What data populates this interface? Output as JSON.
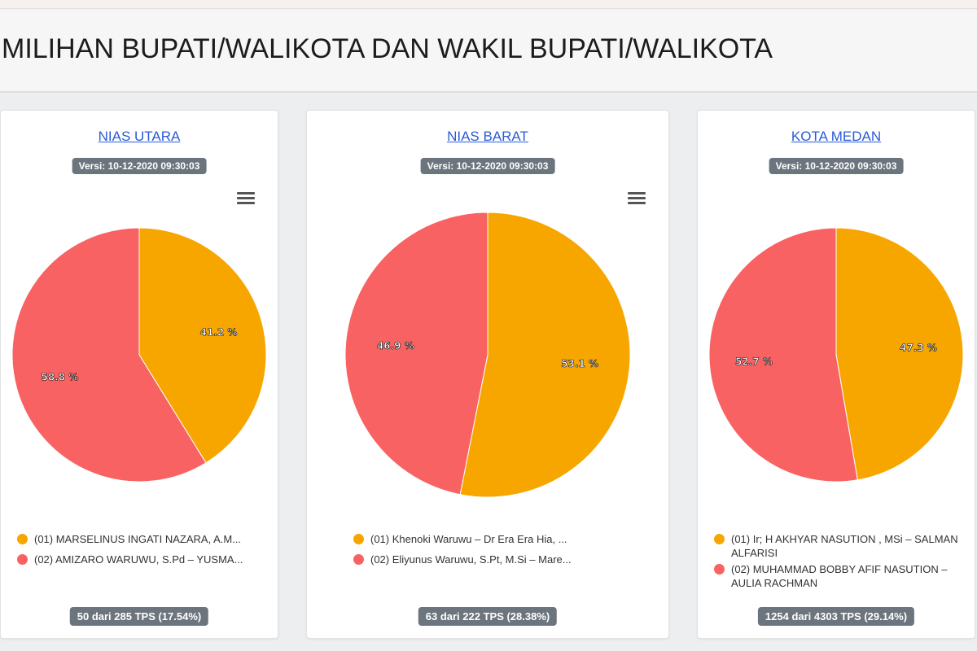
{
  "page": {
    "title": "MILIHAN BUPATI/WALIKOTA DAN WAKIL BUPATI/WALIKOTA"
  },
  "colors": {
    "candidate_01": "#f7a600",
    "candidate_02": "#f96262",
    "badge": "#6c757d",
    "link": "#2a5bd7"
  },
  "menu_icon": "hamburger-menu-icon",
  "chart_data": [
    {
      "type": "pie",
      "title": "NIAS UTARA",
      "version": "Versi: 10-12-2020 09:30:03",
      "legend": [
        "(01) MARSELINUS INGATI NAZARA, A.M...",
        "(02) AMIZARO WARUWU, S.Pd – YUSMA..."
      ],
      "values": [
        41.2,
        58.8
      ],
      "labels": [
        "41.2 %",
        "58.8 %"
      ],
      "tps": "50 dari 285 TPS (17.54%)",
      "show_menu": true
    },
    {
      "type": "pie",
      "title": "NIAS BARAT",
      "version": "Versi: 10-12-2020 09:30:03",
      "legend": [
        "(01) Khenoki Waruwu – Dr Era Era Hia, ...",
        "(02) Eliyunus Waruwu, S.Pt, M.Si – Mare..."
      ],
      "values": [
        53.1,
        46.9
      ],
      "labels": [
        "53.1 %",
        "46.9 %"
      ],
      "tps": "63 dari 222 TPS (28.38%)",
      "show_menu": true
    },
    {
      "type": "pie",
      "title": "KOTA MEDAN",
      "version": "Versi: 10-12-2020 09:30:03",
      "legend": [
        "(01) Ir; H AKHYAR NASUTION , MSi – SALMAN ALFARISI",
        "(02) MUHAMMAD BOBBY AFIF NASUTION – AULIA RACHMAN"
      ],
      "values": [
        47.3,
        52.7
      ],
      "labels": [
        "47.3 %",
        "52.7 %"
      ],
      "tps": "1254 dari 4303 TPS (29.14%)",
      "show_menu": false
    }
  ]
}
